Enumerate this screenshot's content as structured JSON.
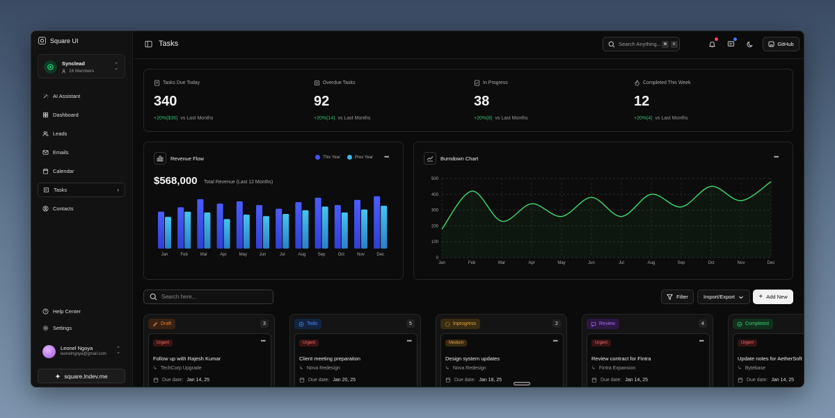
{
  "app": {
    "name": "Square UI"
  },
  "team": {
    "name": "Synclead",
    "members": "16 Members"
  },
  "nav": [
    {
      "label": "AI Assistant",
      "icon": "ai-icon"
    },
    {
      "label": "Dashboard",
      "icon": "grid-icon"
    },
    {
      "label": "Leads",
      "icon": "users-icon"
    },
    {
      "label": "Emails",
      "icon": "mail-icon"
    },
    {
      "label": "Calendar",
      "icon": "calendar-icon"
    },
    {
      "label": "Tasks",
      "icon": "tasks-icon",
      "active": true
    },
    {
      "label": "Contacts",
      "icon": "contact-icon"
    }
  ],
  "footer_nav": [
    {
      "label": "Help Center",
      "icon": "help-icon"
    },
    {
      "label": "Settings",
      "icon": "gear-icon"
    }
  ],
  "user": {
    "name": "Leonel Ngoya",
    "email": "leonelngoya@gmail.com"
  },
  "site_link": "square.lndev.me",
  "header": {
    "title": "Tasks",
    "search_placeholder": "Search Anything...",
    "kbd1": "⌘",
    "kbd2": "K",
    "github_label": "GitHub"
  },
  "stats": [
    {
      "label": "Tasks Due Today",
      "value": "340",
      "change": "+20%($36)",
      "suffix": "vs Last Months"
    },
    {
      "label": "Overdue Tasks",
      "value": "92",
      "change": "+20%(14)",
      "suffix": "vs Last Months"
    },
    {
      "label": "In Progress",
      "value": "38",
      "change": "+20%(8)",
      "suffix": "vs Last Months"
    },
    {
      "label": "Completed This Week",
      "value": "12",
      "change": "+20%(4)",
      "suffix": "vs Last Months"
    }
  ],
  "revenue": {
    "title": "Revenue Flow",
    "legend_this": "This Year",
    "legend_prev": "Prev Year",
    "total": "$568,000",
    "total_label": "Total Revenue (Last 12 Months)",
    "colors": {
      "this_year": "#4353ff",
      "prev_year": "#3fb5e8"
    }
  },
  "burndown": {
    "title": "Burndown Chart"
  },
  "chart_data": [
    {
      "type": "bar",
      "title": "Revenue Flow",
      "categories": [
        "Jan",
        "Feb",
        "Mar",
        "Apr",
        "May",
        "Jun",
        "Jul",
        "Aug",
        "Sep",
        "Oct",
        "Nov",
        "Dec"
      ],
      "series": [
        {
          "name": "This Year",
          "values": [
            50,
            56,
            67,
            61,
            64,
            59,
            54,
            63,
            69,
            59,
            66,
            71
          ]
        },
        {
          "name": "Prev Year",
          "values": [
            43,
            50,
            49,
            40,
            46,
            44,
            47,
            52,
            57,
            49,
            53,
            58
          ]
        }
      ],
      "ylim": [
        0,
        80
      ]
    },
    {
      "type": "line",
      "title": "Burndown Chart",
      "categories": [
        "Jan",
        "Feb",
        "Mar",
        "Apr",
        "May",
        "Jun",
        "Jul",
        "Aug",
        "Sep",
        "Oct",
        "Nov",
        "Dec"
      ],
      "values": [
        180,
        420,
        230,
        340,
        260,
        380,
        260,
        400,
        320,
        450,
        360,
        480
      ],
      "yticks": [
        0,
        100,
        200,
        300,
        400,
        500
      ],
      "ylim": [
        0,
        500
      ],
      "color": "#3ed16b"
    }
  ],
  "board": {
    "search_placeholder": "Search here...",
    "filter_label": "Filter",
    "import_label": "Import/Export",
    "add_label": "Add New"
  },
  "columns": [
    {
      "label": "Draft",
      "count": "3",
      "color": "#e8843a",
      "bg": "#3a2212",
      "task": {
        "priority": "Urgent",
        "ptype": "urgent",
        "title": "Follow up with Rajesh Kumar",
        "project": "TechCorp Upgrade",
        "due_label": "Due date:",
        "due": "Jan 14, 25"
      }
    },
    {
      "label": "Todo",
      "count": "5",
      "color": "#4d8df5",
      "bg": "#132441",
      "task": {
        "priority": "Urgent",
        "ptype": "urgent",
        "title": "Client meeting preparation",
        "project": "Nova Redesign",
        "due_label": "Due date:",
        "due": "Jan 20, 25"
      }
    },
    {
      "label": "Inprogress",
      "count": "2",
      "color": "#e0a545",
      "bg": "#3a2c10",
      "task": {
        "priority": "Medium",
        "ptype": "medium",
        "title": "Design system updates",
        "project": "Nova Redesign",
        "due_label": "Due date:",
        "due": "Jan 18, 25"
      }
    },
    {
      "label": "Review",
      "count": "4",
      "color": "#b06cf0",
      "bg": "#2c1842",
      "task": {
        "priority": "Urgent",
        "ptype": "urgent",
        "title": "Review contract for Fintra",
        "project": "Fintra Expansion",
        "due_label": "Due date:",
        "due": "Jan 14, 25"
      }
    },
    {
      "label": "Completed",
      "count": "",
      "color": "#3ccf6c",
      "bg": "#10301d",
      "task": {
        "priority": "Urgent",
        "ptype": "urgent",
        "title": "Update notes for AetherSoft",
        "project": "Bytebase",
        "due_label": "Due date:",
        "due": "Jan 14, 25"
      }
    }
  ]
}
